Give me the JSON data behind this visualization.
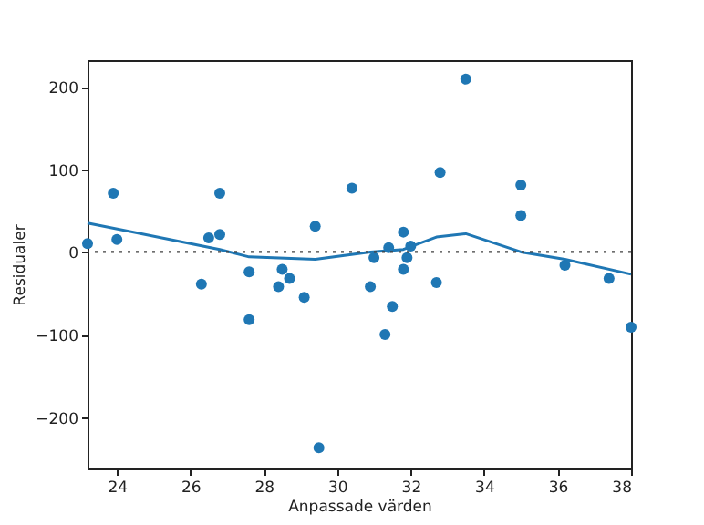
{
  "chart_data": {
    "type": "scatter",
    "xlabel": "Anpassade värden",
    "ylabel": "Residualer",
    "xlim": [
      23.2,
      38
    ],
    "ylim": [
      -262,
      232
    ],
    "xticks": [
      24,
      26,
      28,
      30,
      32,
      34,
      36,
      38
    ],
    "yticks": [
      -200,
      -100,
      0,
      100,
      200
    ],
    "grid": false,
    "marker": "circle",
    "series": [
      {
        "color": "#1f77b4",
        "x": [
          23.2,
          23.9,
          24.0,
          26.3,
          26.5,
          26.8,
          26.8,
          27.6,
          27.6,
          28.4,
          28.5,
          28.7,
          29.1,
          29.4,
          29.5,
          30.4,
          31.0,
          30.9,
          31.3,
          31.4,
          31.5,
          31.8,
          31.8,
          31.9,
          32.0,
          32.7,
          32.8,
          33.5,
          35.0,
          35.0,
          36.2,
          37.4,
          38.0
        ],
        "values": [
          10,
          71,
          15,
          -39,
          17,
          21,
          71,
          -24,
          -82,
          -42,
          -21,
          -32,
          -55,
          31,
          -237,
          77,
          -7,
          -42,
          -100,
          5,
          -66,
          24,
          -21,
          -7,
          7,
          -37,
          96,
          209,
          81,
          44,
          -16,
          -32,
          -91
        ]
      },
      {
        "type": "line",
        "color": "#1f77b4",
        "marker": "none",
        "x": [
          23.2,
          26.8,
          27.6,
          29.4,
          30.9,
          31.8,
          32.7,
          33.5,
          35.0,
          36.2,
          38.0
        ],
        "values": [
          35,
          3,
          -6,
          -9,
          0,
          3,
          18,
          22,
          0,
          -9,
          -27
        ]
      }
    ],
    "ref_lines": [
      {
        "axis": "y",
        "value": 0,
        "color": "#404040",
        "line_style": "dotted"
      }
    ]
  }
}
